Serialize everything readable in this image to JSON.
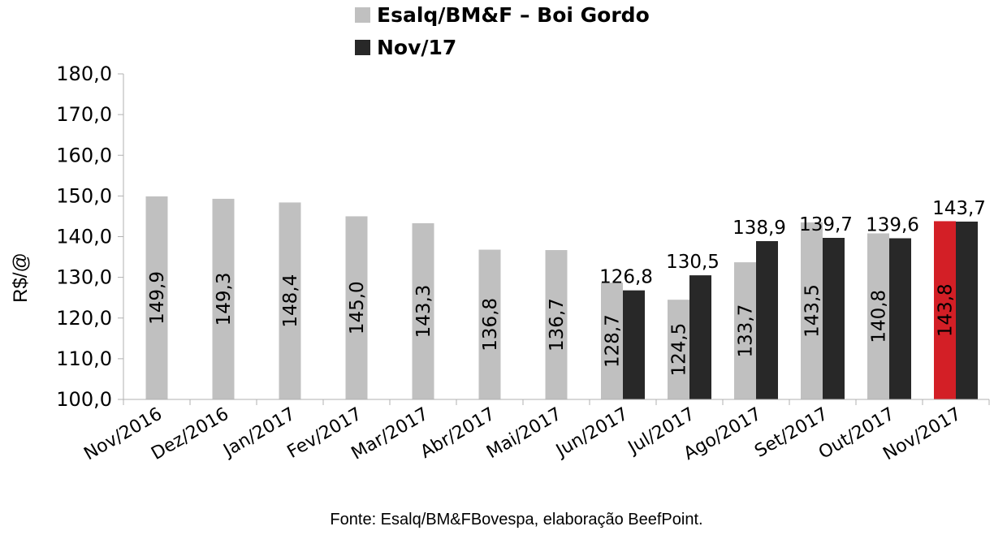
{
  "chart_data": {
    "type": "bar",
    "ylabel": "R$/@",
    "ylim": [
      100,
      180
    ],
    "yticks": [
      "100,0",
      "110,0",
      "120,0",
      "130,0",
      "140,0",
      "150,0",
      "160,0",
      "170,0",
      "180,0"
    ],
    "grid": false,
    "legend_position": "top",
    "categories": [
      "Nov/2016",
      "Dez/2016",
      "Jan/2017",
      "Fev/2017",
      "Mar/2017",
      "Abr/2017",
      "Mai/2017",
      "Jun/2017",
      "Jul/2017",
      "Ago/2017",
      "Set/2017",
      "Out/2017",
      "Nov/2017"
    ],
    "series": [
      {
        "name": "Esalq/BM&F – Boi Gordo",
        "color": "#c0c0c0",
        "values": [
          149.9,
          149.3,
          148.4,
          145.0,
          143.3,
          136.8,
          136.7,
          128.7,
          124.5,
          133.7,
          143.5,
          140.8,
          143.8
        ],
        "labels": [
          "149,9",
          "149,3",
          "148,4",
          "145,0",
          "143,3",
          "136,8",
          "136,7",
          "128,7",
          "124,5",
          "133,7",
          "143,5",
          "140,8",
          "143,8"
        ],
        "highlight": {
          "index": 12,
          "color": "#d31f26"
        }
      },
      {
        "name": "Nov/17",
        "color": "#282828",
        "values": [
          null,
          null,
          null,
          null,
          null,
          null,
          null,
          126.8,
          130.5,
          138.9,
          139.7,
          139.6,
          143.7
        ],
        "labels": [
          "",
          "",
          "",
          "",
          "",
          "",
          "",
          "126,8",
          "130,5",
          "138,9",
          "139,7",
          "139,6",
          "143,7"
        ]
      }
    ],
    "source": "Fonte: Esalq/BM&FBovespa, elaboração BeefPoint."
  }
}
